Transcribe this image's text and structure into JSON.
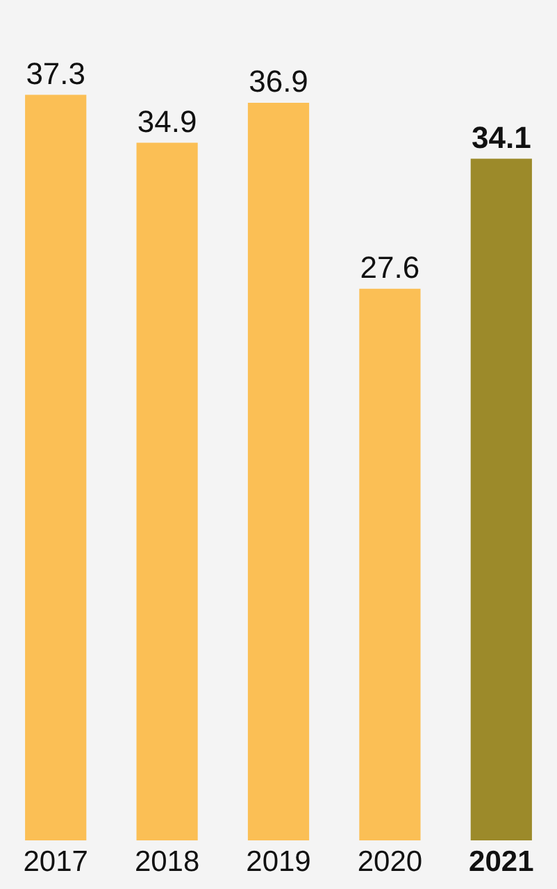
{
  "chart_data": {
    "type": "bar",
    "categories": [
      "2017",
      "2018",
      "2019",
      "2020",
      "2021"
    ],
    "values": [
      37.3,
      34.9,
      36.9,
      27.6,
      34.1
    ],
    "colors": [
      "#fbbf55",
      "#fbbf55",
      "#fbbf55",
      "#fbbf55",
      "#9c8a2a"
    ],
    "data_labels": true
  }
}
